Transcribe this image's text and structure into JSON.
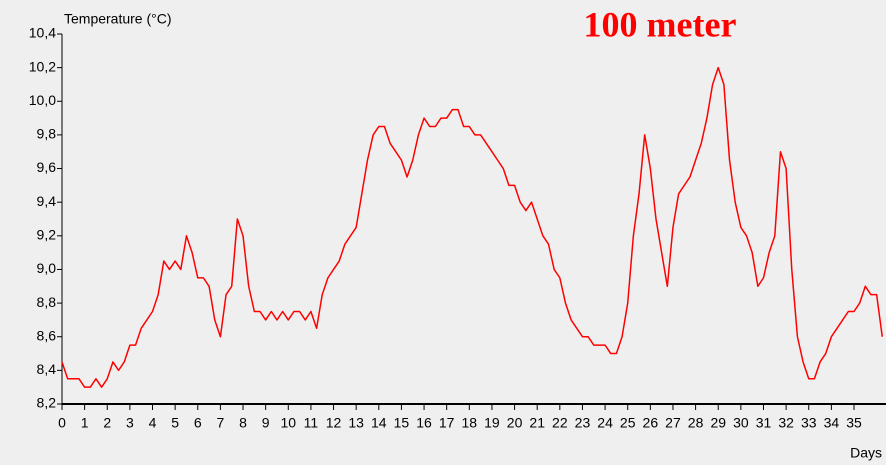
{
  "chart_data": {
    "type": "line",
    "title": "100 meter",
    "y_label": "Temperature (°C)",
    "x_label": "Days",
    "xlim": [
      0,
      36.37
    ],
    "ylim": [
      8.2,
      10.4
    ],
    "xticks": [
      0,
      1,
      2,
      3,
      4,
      5,
      6,
      7,
      8,
      9,
      10,
      11,
      12,
      13,
      14,
      15,
      16,
      17,
      18,
      19,
      20,
      21,
      22,
      23,
      24,
      25,
      26,
      27,
      28,
      29,
      30,
      31,
      32,
      33,
      34,
      35
    ],
    "yticks": [
      {
        "value": 8.2,
        "label": "8,2"
      },
      {
        "value": 8.4,
        "label": "8,4"
      },
      {
        "value": 8.6,
        "label": "8,6"
      },
      {
        "value": 8.8,
        "label": "8,8"
      },
      {
        "value": 9.0,
        "label": "9,0"
      },
      {
        "value": 9.2,
        "label": "9,2"
      },
      {
        "value": 9.4,
        "label": "9,4"
      },
      {
        "value": 9.6,
        "label": "9,6"
      },
      {
        "value": 9.8,
        "label": "9,8"
      },
      {
        "value": 10.0,
        "label": "10,0"
      },
      {
        "value": 10.2,
        "label": "10,2"
      },
      {
        "value": 10.4,
        "label": "10,4"
      }
    ],
    "x": [
      0,
      0.25,
      0.5,
      0.75,
      1,
      1.25,
      1.5,
      1.75,
      2,
      2.25,
      2.5,
      2.75,
      3,
      3.25,
      3.5,
      3.75,
      4,
      4.25,
      4.5,
      4.75,
      5,
      5.25,
      5.5,
      5.75,
      6,
      6.25,
      6.5,
      6.75,
      7,
      7.25,
      7.5,
      7.75,
      8,
      8.25,
      8.5,
      8.75,
      9,
      9.25,
      9.5,
      9.75,
      10,
      10.25,
      10.5,
      10.75,
      11,
      11.25,
      11.5,
      11.75,
      12,
      12.25,
      12.5,
      12.75,
      13,
      13.25,
      13.5,
      13.75,
      14,
      14.25,
      14.5,
      14.75,
      15,
      15.25,
      15.5,
      15.75,
      16,
      16.25,
      16.5,
      16.75,
      17,
      17.25,
      17.5,
      17.75,
      18,
      18.25,
      18.5,
      18.75,
      19,
      19.25,
      19.5,
      19.75,
      20,
      20.25,
      20.5,
      20.75,
      21,
      21.25,
      21.5,
      21.75,
      22,
      22.25,
      22.5,
      22.75,
      23,
      23.25,
      23.5,
      23.75,
      24,
      24.25,
      24.5,
      24.75,
      25,
      25.25,
      25.5,
      25.75,
      26,
      26.25,
      26.5,
      26.75,
      27,
      27.25,
      27.5,
      27.75,
      28,
      28.25,
      28.5,
      28.75,
      29,
      29.25,
      29.5,
      29.75,
      30,
      30.25,
      30.5,
      30.75,
      31,
      31.25,
      31.5,
      31.75,
      32,
      32.25,
      32.5,
      32.75,
      33,
      33.25,
      33.5,
      33.75,
      34,
      34.25,
      34.5,
      34.75,
      35,
      35.25,
      35.5,
      35.75,
      36,
      36.25
    ],
    "series": [
      {
        "name": "100 meter",
        "color": "#ff0000",
        "values": [
          8.45,
          8.35,
          8.35,
          8.35,
          8.3,
          8.3,
          8.35,
          8.3,
          8.35,
          8.45,
          8.4,
          8.45,
          8.55,
          8.55,
          8.65,
          8.7,
          8.75,
          8.85,
          9.05,
          9.0,
          9.05,
          9.0,
          9.2,
          9.1,
          8.95,
          8.95,
          8.9,
          8.7,
          8.6,
          8.85,
          8.9,
          9.3,
          9.2,
          8.9,
          8.75,
          8.75,
          8.7,
          8.75,
          8.7,
          8.75,
          8.7,
          8.75,
          8.75,
          8.7,
          8.75,
          8.65,
          8.85,
          8.95,
          9.0,
          9.05,
          9.15,
          9.2,
          9.25,
          9.45,
          9.65,
          9.8,
          9.85,
          9.85,
          9.75,
          9.7,
          9.65,
          9.55,
          9.65,
          9.8,
          9.9,
          9.85,
          9.85,
          9.9,
          9.9,
          9.95,
          9.95,
          9.85,
          9.85,
          9.8,
          9.8,
          9.75,
          9.7,
          9.65,
          9.6,
          9.5,
          9.5,
          9.4,
          9.35,
          9.4,
          9.3,
          9.2,
          9.15,
          9.0,
          8.95,
          8.8,
          8.7,
          8.65,
          8.6,
          8.6,
          8.55,
          8.55,
          8.55,
          8.5,
          8.5,
          8.6,
          8.8,
          9.2,
          9.45,
          9.8,
          9.6,
          9.3,
          9.1,
          8.9,
          9.25,
          9.45,
          9.5,
          9.55,
          9.65,
          9.75,
          9.9,
          10.1,
          10.2,
          10.1,
          9.65,
          9.4,
          9.25,
          9.2,
          9.1,
          8.9,
          8.95,
          9.1,
          9.2,
          9.7,
          9.6,
          9.0,
          8.6,
          8.45,
          8.35,
          8.35,
          8.45,
          8.5,
          8.6,
          8.65,
          8.7,
          8.75,
          8.75,
          8.8,
          8.9,
          8.85,
          8.85,
          8.6
        ]
      }
    ]
  }
}
